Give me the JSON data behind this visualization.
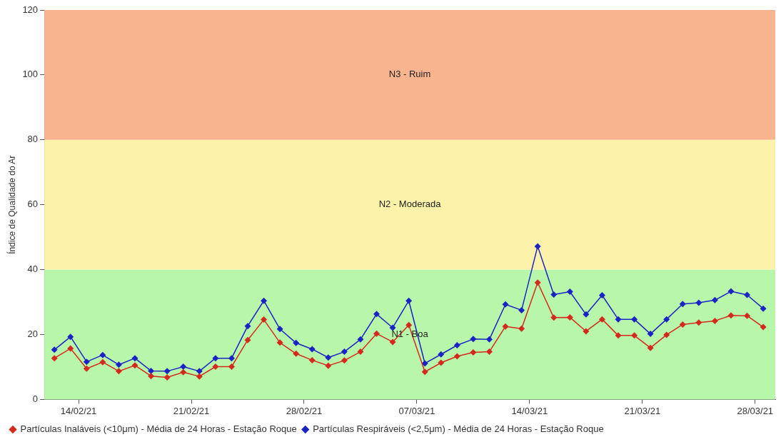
{
  "chart_data": {
    "type": "line",
    "ylabel": "Índice de Qualidade do Ar",
    "x": [
      "--02-12T12:00",
      "--02-13T12:00",
      "--02-14T12:00",
      "--02-15T12:00",
      "--02-16T12:00",
      "--02-17T12:00",
      "--02-18T12:00",
      "--02-19T12:00",
      "--02-20T12:00",
      "--02-21T12:00",
      "--02-22T12:00",
      "--02-23T12:00",
      "--02-24T12:00",
      "--02-25T12:00",
      "--02-26T12:00",
      "--02-27T12:00",
      "--02-28T12:00",
      "--03-01T12:00",
      "--03-02T12:00",
      "--03-03T12:00",
      "--03-04T12:00",
      "--03-05T12:00",
      "--03-06T12:00",
      "--03-07T12:00",
      "--03-08T12:00",
      "--03-09T12:00",
      "--03-10T12:00",
      "--03-11T12:00",
      "--03-12T12:00",
      "--03-13T12:00",
      "--03-14T12:00",
      "--03-15T12:00",
      "--03-16T12:00",
      "--03-17T12:00",
      "--03-18T12:00",
      "--03-19T12:00",
      "--03-20T12:00",
      "--03-21T12:00",
      "--03-22T12:00",
      "--03-23T12:00",
      "--03-24T12:00",
      "--03-25T12:00",
      "--03-26T12:00",
      "--03-27T12:00",
      "--03-28T12:00"
    ],
    "series": [
      {
        "name": "Partículas Inaláveis (<10μm) - Média de 24 Horas - Estação Roque",
        "color": "#d42a1e",
        "values": [
          12.7,
          15.7,
          9.5,
          11.5,
          8.7,
          10.5,
          7.2,
          6.8,
          8.4,
          7.1,
          10.1,
          10.1,
          18.3,
          24.6,
          17.5,
          14.1,
          12.1,
          10.4,
          12.0,
          14.7,
          20.3,
          17.7,
          22.9,
          8.5,
          11.3,
          13.3,
          14.5,
          14.7,
          22.5,
          21.8,
          36.0,
          25.2,
          25.3,
          21.0,
          24.7,
          19.7,
          19.7,
          15.9,
          19.9,
          23.1,
          23.7,
          24.2,
          25.9,
          25.8,
          22.3
        ]
      },
      {
        "name": "Partículas Respiráveis (<2,5μm) - Média de 24 Horas - Estação Roque",
        "color": "#1a24c4",
        "values": [
          15.3,
          19.3,
          11.6,
          13.7,
          10.7,
          12.7,
          8.8,
          8.7,
          10.1,
          8.7,
          12.7,
          12.7,
          22.6,
          30.4,
          21.7,
          17.4,
          15.5,
          12.9,
          14.7,
          18.5,
          26.3,
          22.1,
          30.4,
          11.1,
          13.9,
          16.7,
          18.6,
          18.5,
          29.3,
          27.5,
          47.2,
          32.3,
          33.2,
          26.2,
          32.1,
          24.7,
          24.7,
          20.2,
          24.7,
          29.4,
          29.8,
          30.6,
          33.3,
          32.2,
          28.0
        ]
      }
    ],
    "xlim": [
      "--02-11T21:00",
      "--03-29T06:00"
    ],
    "xticks": [
      {
        "value": "--02-14T00:00",
        "label": "14/02/21"
      },
      {
        "value": "--02-21T00:00",
        "label": "21/02/21"
      },
      {
        "value": "--02-28T00:00",
        "label": "28/02/21"
      },
      {
        "value": "--03-07T00:00",
        "label": "07/03/21"
      },
      {
        "value": "--03-14T00:00",
        "label": "14/03/21"
      },
      {
        "value": "--03-21T00:00",
        "label": "21/03/21"
      },
      {
        "value": "--03-28T00:00",
        "label": "28/03/21"
      }
    ],
    "ylim": [
      0,
      120
    ],
    "yticks": [
      0,
      20,
      40,
      60,
      80,
      100,
      120
    ],
    "bands": [
      {
        "axis": "y",
        "from": 0,
        "to": 40,
        "label": "N1 - Boa",
        "color": "#b8f7a9"
      },
      {
        "axis": "y",
        "from": 40,
        "to": 80,
        "label": "N2 - Moderada",
        "color": "#fdf2a9"
      },
      {
        "axis": "y",
        "from": 80,
        "to": 120,
        "label": "N3 - Ruim",
        "color": "#f8b48f"
      }
    ],
    "grid": false,
    "legend": "bottom left",
    "marker": "diamond",
    "line_style": "solid"
  }
}
